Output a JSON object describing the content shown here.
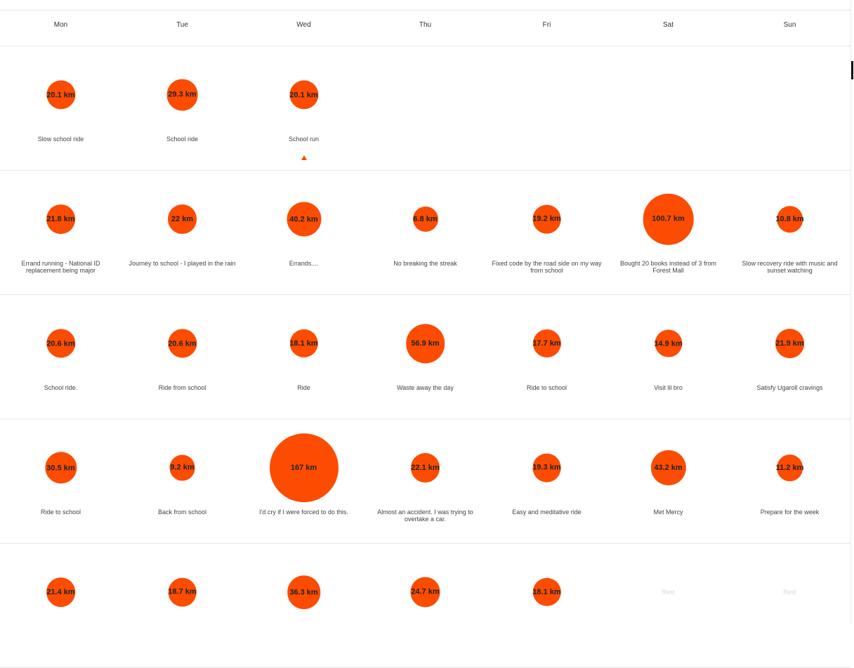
{
  "days": [
    "Mon",
    "Tue",
    "Wed",
    "Thu",
    "Fri",
    "Sat",
    "Sun"
  ],
  "weeks": [
    [
      {
        "dist": "20.1 km",
        "km": 20.1,
        "title": "Slow school ride"
      },
      {
        "dist": "29.3 km",
        "km": 29.3,
        "title": "School ride"
      },
      {
        "dist": "20.1 km",
        "km": 20.1,
        "title": "School run",
        "marker": true
      },
      {
        "empty": true
      },
      {
        "empty": true
      },
      {
        "empty": true
      },
      {
        "empty": true
      }
    ],
    [
      {
        "dist": "21.8 km",
        "km": 21.8,
        "title": "Errand running - National ID replacement being major"
      },
      {
        "dist": "22 km",
        "km": 22,
        "title": "Journey to school - I played in the rain"
      },
      {
        "dist": "40.2 km",
        "km": 40.2,
        "title": "Errands...."
      },
      {
        "dist": "6.8 km",
        "km": 6.8,
        "title": "No breaking the streak"
      },
      {
        "dist": "19.2 km",
        "km": 19.2,
        "title": "Fixed code by the road side on my way from school"
      },
      {
        "dist": "100.7 km",
        "km": 100.7,
        "title": "Bought 20 books instead of 3 from Forest Mall"
      },
      {
        "dist": "10.8 km",
        "km": 10.8,
        "title": "Slow recovery ride with music and sunset watching"
      }
    ],
    [
      {
        "dist": "20.6 km",
        "km": 20.6,
        "title": "School ride."
      },
      {
        "dist": "20.6 km",
        "km": 20.6,
        "title": "Ride from school"
      },
      {
        "dist": "18.1 km",
        "km": 18.1,
        "title": "Ride"
      },
      {
        "dist": "56.9 km",
        "km": 56.9,
        "title": "Waste away the day"
      },
      {
        "dist": "17.7 km",
        "km": 17.7,
        "title": "Ride to school"
      },
      {
        "dist": "14.9 km",
        "km": 14.9,
        "title": "Visit lil bro"
      },
      {
        "dist": "21.9 km",
        "km": 21.9,
        "title": "Satisfy Ugaroll cravings"
      }
    ],
    [
      {
        "dist": "30.5 km",
        "km": 30.5,
        "title": "Ride to school"
      },
      {
        "dist": "9.2 km",
        "km": 9.2,
        "title": "Back from school"
      },
      {
        "dist": "167 km",
        "km": 167,
        "title": "I'd cry if I were forced to do this."
      },
      {
        "dist": "22.1 km",
        "km": 22.1,
        "title": "Almost an accident. I was trying to overtake a car."
      },
      {
        "dist": "19.3 km",
        "km": 19.3,
        "title": "Easy and meditative ride"
      },
      {
        "dist": "43.2 km",
        "km": 43.2,
        "title": "Met Mercy"
      },
      {
        "dist": "11.2 km",
        "km": 11.2,
        "title": "Prepare for the week"
      }
    ],
    [
      {
        "dist": "21.4 km",
        "km": 21.4,
        "title": ""
      },
      {
        "dist": "18.7 km",
        "km": 18.7,
        "title": ""
      },
      {
        "dist": "36.3 km",
        "km": 36.3,
        "title": ""
      },
      {
        "dist": "24.7 km",
        "km": 24.7,
        "title": ""
      },
      {
        "dist": "18.1 km",
        "km": 18.1,
        "title": ""
      },
      {
        "rest": "Rest"
      },
      {
        "rest": "Rest"
      }
    ]
  ],
  "accent_color": "#fc4c02"
}
